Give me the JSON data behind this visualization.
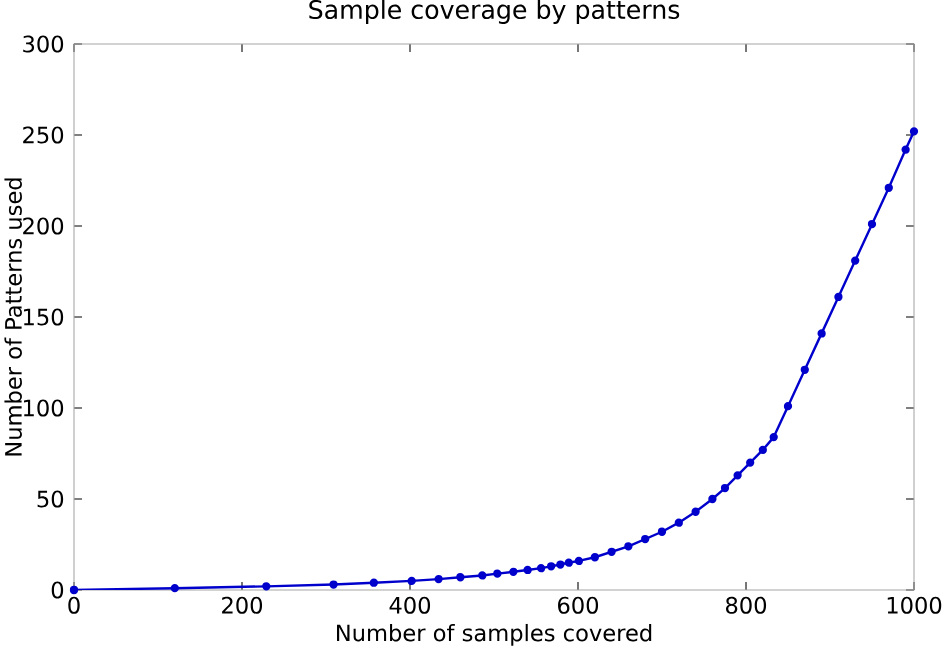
{
  "chart_data": {
    "type": "line",
    "title": "Sample coverage by patterns",
    "xlabel": "Number of samples covered",
    "ylabel": "Number of Patterns used",
    "xlim": [
      0,
      1000
    ],
    "ylim": [
      0,
      300
    ],
    "xticks": [
      0,
      200,
      400,
      600,
      800,
      1000
    ],
    "yticks": [
      0,
      50,
      100,
      150,
      200,
      250,
      300
    ],
    "grid": false,
    "marker": "circle",
    "line_style": "solid",
    "series": [
      {
        "color": "#0000cc",
        "x": [
          0,
          120,
          229,
          309,
          357,
          402,
          434,
          460,
          486,
          504,
          523,
          540,
          556,
          568,
          579,
          589,
          601,
          620,
          640,
          660,
          680,
          700,
          720,
          740,
          760,
          775,
          790,
          805,
          820,
          833,
          850,
          870,
          890,
          910,
          930,
          950,
          970,
          990,
          1000
        ],
        "values": [
          0,
          1,
          2,
          3,
          4,
          5,
          6,
          7,
          8,
          9,
          10,
          11,
          12,
          13,
          14,
          15,
          16,
          18,
          21,
          24,
          28,
          32,
          37,
          43,
          50,
          56,
          63,
          70,
          77,
          84,
          101,
          121,
          141,
          161,
          181,
          201,
          221,
          242,
          252
        ]
      }
    ]
  }
}
